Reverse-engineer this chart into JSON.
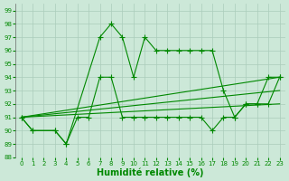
{
  "xlabel": "Humidité relative (%)",
  "background_color": "#cce8d8",
  "grid_color": "#aaccbb",
  "line_color": "#008800",
  "xlim": [
    -0.5,
    23.5
  ],
  "ylim": [
    88,
    99.5
  ],
  "yticks": [
    88,
    89,
    90,
    91,
    92,
    93,
    94,
    95,
    96,
    97,
    98,
    99
  ],
  "xticks": [
    0,
    1,
    2,
    3,
    4,
    5,
    6,
    7,
    8,
    9,
    10,
    11,
    12,
    13,
    14,
    15,
    16,
    17,
    18,
    19,
    20,
    21,
    22,
    23
  ],
  "series": [
    {
      "x": [
        0,
        1,
        3,
        4,
        7,
        8,
        9,
        10,
        11,
        12,
        13,
        14,
        15,
        16,
        17,
        18,
        19,
        20,
        21,
        22,
        23
      ],
      "y": [
        91,
        90,
        90,
        89,
        97,
        98,
        97,
        94,
        97,
        96,
        96,
        96,
        96,
        96,
        96,
        93,
        91,
        92,
        92,
        94,
        94
      ],
      "style": "line_marker"
    },
    {
      "x": [
        0,
        1,
        3,
        4,
        5,
        6,
        7,
        8,
        9,
        10,
        11,
        12,
        13,
        14,
        15,
        16,
        17,
        18,
        19,
        20,
        21,
        22,
        23
      ],
      "y": [
        91,
        90,
        90,
        89,
        91,
        91,
        94,
        94,
        91,
        91,
        91,
        91,
        91,
        91,
        91,
        91,
        90,
        91,
        91,
        92,
        92,
        92,
        94
      ],
      "style": "line_marker"
    },
    {
      "x": [
        0,
        23
      ],
      "y": [
        91,
        92
      ],
      "style": "line"
    },
    {
      "x": [
        0,
        23
      ],
      "y": [
        91,
        93
      ],
      "style": "line"
    },
    {
      "x": [
        0,
        23
      ],
      "y": [
        91,
        94
      ],
      "style": "line"
    }
  ],
  "xlabel_fontsize": 7,
  "tick_fontsize": 5
}
